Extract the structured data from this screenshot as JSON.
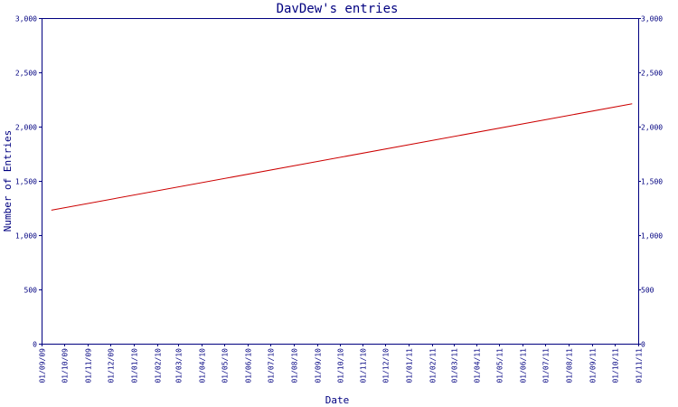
{
  "chart_data": {
    "type": "line",
    "title": "DavDew's entries",
    "xlabel": "Date",
    "ylabel": "Number of Entries",
    "ylim": [
      0,
      3000
    ],
    "y_ticks": [
      "0",
      "500",
      "1,000",
      "1,500",
      "2,000",
      "2,500",
      "3,000"
    ],
    "y_tick_values": [
      0,
      500,
      1000,
      1500,
      2000,
      2500,
      3000
    ],
    "x_ticks": [
      "01/09/09",
      "01/10/09",
      "01/11/09",
      "01/12/09",
      "01/01/10",
      "01/02/10",
      "01/03/10",
      "01/04/10",
      "01/05/10",
      "01/06/10",
      "01/07/10",
      "01/08/10",
      "01/09/10",
      "01/10/10",
      "01/11/10",
      "01/12/10",
      "01/01/11",
      "01/02/11",
      "01/03/11",
      "01/04/11",
      "01/05/11",
      "01/06/11",
      "01/07/11",
      "01/08/11",
      "01/09/11",
      "01/10/11",
      "01/11/11"
    ],
    "grid": false,
    "colors": {
      "axis": "#000080",
      "line": "#cc0000"
    },
    "series": [
      {
        "x": [
          "2009-09-14",
          "2011-10-24"
        ],
        "values": [
          1230,
          2210
        ]
      }
    ]
  }
}
